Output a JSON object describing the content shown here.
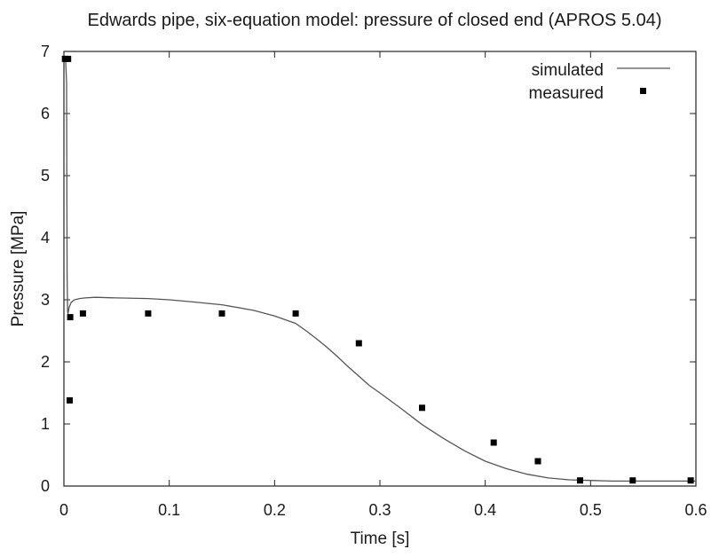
{
  "chart_data": {
    "type": "line",
    "title": "Edwards pipe, six-equation model: pressure of closed end (APROS 5.04)",
    "xlabel": "Time [s]",
    "ylabel": "Pressure [MPa]",
    "xlim": [
      0,
      0.6
    ],
    "ylim": [
      0,
      7
    ],
    "xticks": [
      "0",
      "0.1",
      "0.2",
      "0.3",
      "0.4",
      "0.5",
      "0.6"
    ],
    "yticks": [
      "0",
      "1",
      "2",
      "3",
      "4",
      "5",
      "6",
      "7"
    ],
    "grid": false,
    "legend_position": "top-right",
    "series": [
      {
        "name": "simulated",
        "style": "line",
        "color": "#555555",
        "x": [
          0,
          0.0015,
          0.0025,
          0.003,
          0.0035,
          0.004,
          0.005,
          0.007,
          0.01,
          0.015,
          0.02,
          0.03,
          0.05,
          0.08,
          0.1,
          0.12,
          0.15,
          0.18,
          0.2,
          0.22,
          0.23,
          0.24,
          0.25,
          0.26,
          0.27,
          0.28,
          0.29,
          0.3,
          0.32,
          0.34,
          0.36,
          0.38,
          0.4,
          0.42,
          0.44,
          0.46,
          0.48,
          0.5,
          0.52,
          0.55,
          0.58,
          0.6
        ],
        "y": [
          6.9,
          6.9,
          6.5,
          3.4,
          2.8,
          2.78,
          2.88,
          2.96,
          3.0,
          3.02,
          3.03,
          3.04,
          3.03,
          3.02,
          3.0,
          2.97,
          2.92,
          2.83,
          2.74,
          2.62,
          2.5,
          2.37,
          2.23,
          2.08,
          1.92,
          1.77,
          1.62,
          1.5,
          1.25,
          0.99,
          0.77,
          0.57,
          0.4,
          0.28,
          0.19,
          0.13,
          0.1,
          0.09,
          0.08,
          0.08,
          0.08,
          0.08
        ]
      },
      {
        "name": "measured",
        "style": "points",
        "color": "#000000",
        "x": [
          0.001,
          0.004,
          0.0055,
          0.006,
          0.018,
          0.08,
          0.15,
          0.22,
          0.28,
          0.34,
          0.408,
          0.45,
          0.49,
          0.54,
          0.595
        ],
        "y": [
          6.88,
          6.88,
          1.38,
          2.72,
          2.78,
          2.78,
          2.78,
          2.78,
          2.3,
          1.26,
          0.7,
          0.4,
          0.09,
          0.09,
          0.09
        ]
      }
    ]
  }
}
